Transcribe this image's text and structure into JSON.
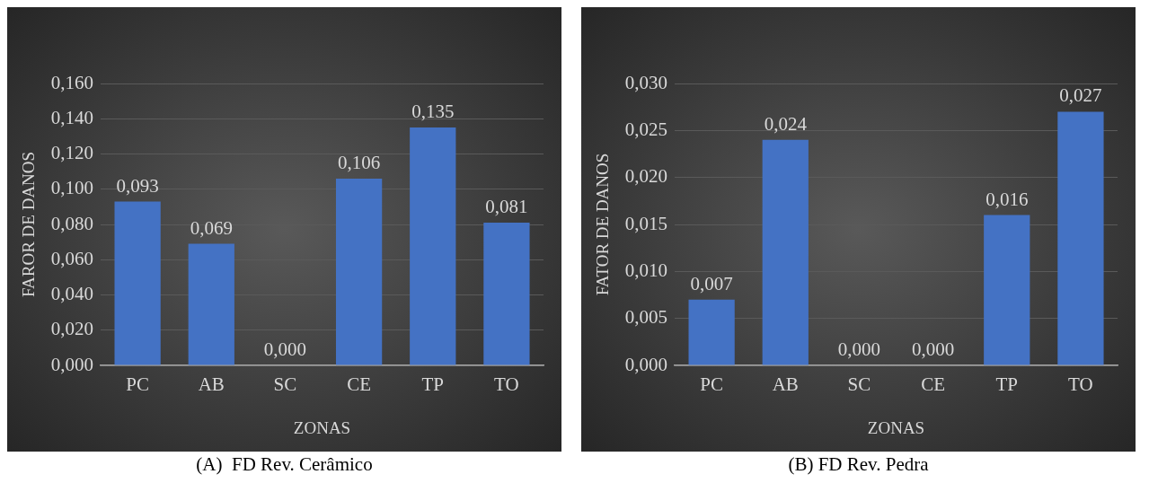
{
  "chart_data": [
    {
      "type": "bar",
      "ylabel": "FAROR DE DANOS",
      "xlabel": "ZONAS",
      "annotations": [
        "(A)  FD Rev. Cerâmico"
      ],
      "categories": [
        "PC",
        "AB",
        "SC",
        "CE",
        "TP",
        "TO"
      ],
      "values": [
        0.093,
        0.069,
        0,
        0.106,
        0.135,
        0.081
      ],
      "value_labels": [
        "0,093",
        "0,069",
        "0,000",
        "0,106",
        "0,135",
        "0,081"
      ],
      "color": "#4472c4",
      "ylim": [
        0,
        0.16
      ],
      "yticks": [
        {
          "value": 0,
          "label": "0,000"
        },
        {
          "value": 0.02,
          "label": "0,020"
        },
        {
          "value": 0.04,
          "label": "0,040"
        },
        {
          "value": 0.06,
          "label": "0,060"
        },
        {
          "value": 0.08,
          "label": "0,080"
        },
        {
          "value": 0.1,
          "label": "0,100"
        },
        {
          "value": 0.12,
          "label": "0,120"
        },
        {
          "value": 0.14,
          "label": "0,140"
        },
        {
          "value": 0.16,
          "label": "0,160"
        }
      ],
      "grid": "y",
      "legend": false
    },
    {
      "type": "bar",
      "ylabel": "FATOR DE DANOS",
      "xlabel": "ZONAS",
      "annotations": [
        "(B) FD Rev. Pedra"
      ],
      "categories": [
        "PC",
        "AB",
        "SC",
        "CE",
        "TP",
        "TO"
      ],
      "values": [
        0.007,
        0.024,
        0,
        0,
        0.016,
        0.027
      ],
      "value_labels": [
        "0,007",
        "0,024",
        "0,000",
        "0,000",
        "0,016",
        "0,027"
      ],
      "color": "#4472c4",
      "ylim": [
        0,
        0.03
      ],
      "yticks": [
        {
          "value": 0,
          "label": "0,000"
        },
        {
          "value": 0.005,
          "label": "0,005"
        },
        {
          "value": 0.01,
          "label": "0,010"
        },
        {
          "value": 0.015,
          "label": "0,015"
        },
        {
          "value": 0.02,
          "label": "0,020"
        },
        {
          "value": 0.025,
          "label": "0,025"
        },
        {
          "value": 0.03,
          "label": "0,030"
        }
      ],
      "grid": "y",
      "legend": false
    }
  ]
}
